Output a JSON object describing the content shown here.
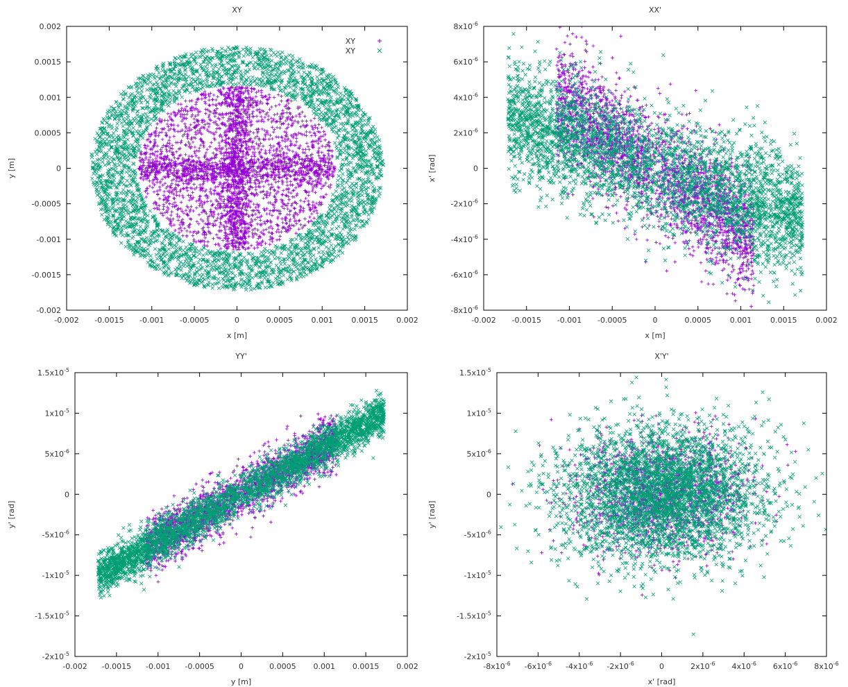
{
  "colors": {
    "purple": "#9400d3",
    "green": "#009e73",
    "axis": "#000000",
    "grid": "#a0a0a0",
    "text": "#333333"
  },
  "chart_data": [
    {
      "type": "scatter",
      "title": "XY",
      "xlabel": "x [m]",
      "ylabel": "y [m]",
      "xlim": [
        -0.002,
        0.002
      ],
      "ylim": [
        -0.002,
        0.002
      ],
      "xticks": [
        {
          "v": -0.002,
          "l": "-0.002"
        },
        {
          "v": -0.0015,
          "l": "-0.0015"
        },
        {
          "v": -0.001,
          "l": "-0.001"
        },
        {
          "v": -0.0005,
          "l": "-0.0005"
        },
        {
          "v": 0,
          "l": "0"
        },
        {
          "v": 0.0005,
          "l": "0.0005"
        },
        {
          "v": 0.001,
          "l": "0.001"
        },
        {
          "v": 0.0015,
          "l": "0.0015"
        },
        {
          "v": 0.002,
          "l": "0.002"
        }
      ],
      "yticks": [
        {
          "v": -0.002,
          "l": "-0.002"
        },
        {
          "v": -0.0015,
          "l": "-0.0015"
        },
        {
          "v": -0.001,
          "l": "-0.001"
        },
        {
          "v": -0.0005,
          "l": "-0.0005"
        },
        {
          "v": 0,
          "l": "0"
        },
        {
          "v": 0.0005,
          "l": "0.0005"
        },
        {
          "v": 0.001,
          "l": "0.001"
        },
        {
          "v": 0.0015,
          "l": "0.0015"
        },
        {
          "v": 0.002,
          "l": "0.002"
        }
      ],
      "grid": false,
      "legend": {
        "placement": "top-right",
        "entries": [
          {
            "name": "XY",
            "marker": "+",
            "color": "#9400d3"
          },
          {
            "name": "XY",
            "marker": "x",
            "color": "#009e73"
          }
        ]
      },
      "series": [
        {
          "name": "XY",
          "marker": "+",
          "color": "#9400d3",
          "distribution": {
            "shape": "disk-cross",
            "x_radius": 0.00115,
            "y_radius": 0.00115,
            "count": 3500
          }
        },
        {
          "name": "XY",
          "marker": "x",
          "color": "#009e73",
          "distribution": {
            "shape": "annulus",
            "x_inner": 0.00118,
            "x_outer": 0.00172,
            "y_inner": 0.00118,
            "y_outer": 0.00172,
            "count": 3500
          }
        }
      ]
    },
    {
      "type": "scatter",
      "title": "XX'",
      "xlabel": "x [m]",
      "ylabel": "x' [rad]",
      "xlim": [
        -0.002,
        0.002
      ],
      "ylim": [
        -8e-06,
        8e-06
      ],
      "xticks": [
        {
          "v": -0.002,
          "l": "-0.002"
        },
        {
          "v": -0.0015,
          "l": "-0.0015"
        },
        {
          "v": -0.001,
          "l": "-0.001"
        },
        {
          "v": -0.0005,
          "l": "-0.0005"
        },
        {
          "v": 0,
          "l": "0"
        },
        {
          "v": 0.0005,
          "l": "0.0005"
        },
        {
          "v": 0.001,
          "l": "0.001"
        },
        {
          "v": 0.0015,
          "l": "0.0015"
        },
        {
          "v": 0.002,
          "l": "0.002"
        }
      ],
      "yticks": [
        {
          "v": -8e-06,
          "m": "-8x10",
          "e": "-6"
        },
        {
          "v": -6e-06,
          "m": "-6x10",
          "e": "-6"
        },
        {
          "v": -4e-06,
          "m": "-4x10",
          "e": "-6"
        },
        {
          "v": -2e-06,
          "m": "-2x10",
          "e": "-6"
        },
        {
          "v": 0,
          "m": "0",
          "e": ""
        },
        {
          "v": 2e-06,
          "m": "2x10",
          "e": "-6"
        },
        {
          "v": 4e-06,
          "m": "4x10",
          "e": "-6"
        },
        {
          "v": 6e-06,
          "m": "6x10",
          "e": "-6"
        },
        {
          "v": 8e-06,
          "m": "8x10",
          "e": "-6"
        }
      ],
      "grid": false,
      "series": [
        {
          "name": "XY",
          "marker": "+",
          "color": "#9400d3",
          "distribution": {
            "shape": "correlated",
            "x_half_range": 0.00115,
            "slope": -0.0035,
            "spread": 1.6e-06,
            "count": 2500
          }
        },
        {
          "name": "XY",
          "marker": "x",
          "color": "#009e73",
          "distribution": {
            "shape": "correlated",
            "x_half_range": 0.00172,
            "slope": -0.0017,
            "spread": 1.7e-06,
            "count": 3500
          }
        }
      ]
    },
    {
      "type": "scatter",
      "title": "YY'",
      "xlabel": "y [m]",
      "ylabel": "y' [rad]",
      "xlim": [
        -0.002,
        0.002
      ],
      "ylim": [
        -2e-05,
        1.5e-05
      ],
      "xticks": [
        {
          "v": -0.002,
          "l": "-0.002"
        },
        {
          "v": -0.0015,
          "l": "-0.0015"
        },
        {
          "v": -0.001,
          "l": "-0.001"
        },
        {
          "v": -0.0005,
          "l": "-0.0005"
        },
        {
          "v": 0,
          "l": "0"
        },
        {
          "v": 0.0005,
          "l": "0.0005"
        },
        {
          "v": 0.001,
          "l": "0.001"
        },
        {
          "v": 0.0015,
          "l": "0.0015"
        },
        {
          "v": 0.002,
          "l": "0.002"
        }
      ],
      "yticks": [
        {
          "v": -2e-05,
          "m": "-2x10",
          "e": "-5"
        },
        {
          "v": -1.5e-05,
          "m": "-1.5x10",
          "e": "-5"
        },
        {
          "v": -1e-05,
          "m": "-1x10",
          "e": "-5"
        },
        {
          "v": -5e-06,
          "m": "-5x10",
          "e": "-6"
        },
        {
          "v": 0,
          "m": "0",
          "e": ""
        },
        {
          "v": 5e-06,
          "m": "5x10",
          "e": "-6"
        },
        {
          "v": 1e-05,
          "m": "1x10",
          "e": "-5"
        },
        {
          "v": 1.5e-05,
          "m": "1.5x10",
          "e": "-5"
        }
      ],
      "grid": false,
      "series": [
        {
          "name": "XY",
          "marker": "+",
          "color": "#9400d3",
          "distribution": {
            "shape": "correlated",
            "x_half_range": 0.00115,
            "slope": 0.0058,
            "spread": 1.6e-06,
            "count": 2200
          }
        },
        {
          "name": "XY",
          "marker": "x",
          "color": "#009e73",
          "distribution": {
            "shape": "correlated",
            "x_half_range": 0.00172,
            "slope": 0.0058,
            "spread": 1.3e-06,
            "count": 3500
          }
        }
      ]
    },
    {
      "type": "scatter",
      "title": "X'Y'",
      "xlabel": "x' [rad]",
      "ylabel": "y' [rad]",
      "xlim": [
        -8e-06,
        8e-06
      ],
      "ylim": [
        -2e-05,
        1.5e-05
      ],
      "xticks": [
        {
          "v": -8e-06,
          "m": "-8x10",
          "e": "-6"
        },
        {
          "v": -6e-06,
          "m": "-6x10",
          "e": "-6"
        },
        {
          "v": -4e-06,
          "m": "-4x10",
          "e": "-6"
        },
        {
          "v": -2e-06,
          "m": "-2x10",
          "e": "-6"
        },
        {
          "v": 0,
          "m": "0",
          "e": ""
        },
        {
          "v": 2e-06,
          "m": "2x10",
          "e": "-6"
        },
        {
          "v": 4e-06,
          "m": "4x10",
          "e": "-6"
        },
        {
          "v": 6e-06,
          "m": "6x10",
          "e": "-6"
        },
        {
          "v": 8e-06,
          "m": "8x10",
          "e": "-6"
        }
      ],
      "yticks": [
        {
          "v": -2e-05,
          "m": "-2x10",
          "e": "-5"
        },
        {
          "v": -1.5e-05,
          "m": "-1.5x10",
          "e": "-5"
        },
        {
          "v": -1e-05,
          "m": "-1x10",
          "e": "-5"
        },
        {
          "v": -5e-06,
          "m": "-5x10",
          "e": "-6"
        },
        {
          "v": 0,
          "m": "0",
          "e": ""
        },
        {
          "v": 5e-06,
          "m": "5x10",
          "e": "-6"
        },
        {
          "v": 1e-05,
          "m": "1x10",
          "e": "-5"
        },
        {
          "v": 1.5e-05,
          "m": "1.5x10",
          "e": "-5"
        }
      ],
      "grid": false,
      "series": [
        {
          "name": "XY",
          "marker": "+",
          "color": "#9400d3",
          "distribution": {
            "shape": "gaussian-blob",
            "sx": 2e-06,
            "sy": 3.5e-06,
            "count": 1500
          }
        },
        {
          "name": "XY",
          "marker": "x",
          "color": "#009e73",
          "distribution": {
            "shape": "gaussian-blob",
            "sx": 2.5e-06,
            "sy": 4.2e-06,
            "count": 3500
          }
        }
      ]
    }
  ]
}
